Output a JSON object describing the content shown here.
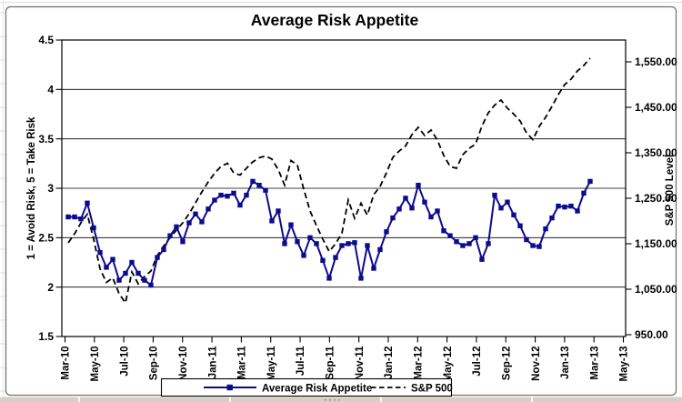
{
  "chart_data": {
    "type": "line",
    "title": "Average Risk Appetite",
    "grid": "horizontal",
    "plot_bg": "#ffffff",
    "frame_border_color": "#6f6f6f",
    "y_axis_left": {
      "label": "1 = Avoid Risk, 5 = Take Risk",
      "min": 1.5,
      "max": 4.5,
      "tick_labels": [
        "1.5",
        "2",
        "2.5",
        "3",
        "3.5",
        "4",
        "4.5"
      ]
    },
    "y_axis_right": {
      "label": "S&P 500 Level",
      "min": 950,
      "max": 1550,
      "tick_labels": [
        "950.00",
        "1,050.00",
        "1,150.00",
        "1,250.00",
        "1,350.00",
        "1,450.00",
        "1,550.00"
      ]
    },
    "x_axis": {
      "tick_labels": [
        "Mar-10",
        "May-10",
        "Jul-10",
        "Sep-10",
        "Nov-10",
        "Jan-11",
        "Mar-11",
        "May-11",
        "Jul-11",
        "Sep-11",
        "Nov-11",
        "Jan-12",
        "Mar-12",
        "May-12",
        "Jul-12",
        "Sep-12",
        "Nov-12",
        "Jan-13",
        "Mar-13",
        "May-13"
      ],
      "labels_rotated": true,
      "data_frequency": "biweekly",
      "data_start": "Mar-10",
      "data_end": "Mar-13"
    },
    "legend": {
      "position": "bottom"
    },
    "series": [
      {
        "name": "Average Risk Appetite",
        "axis": "left",
        "color": "#0b0b8f",
        "style": "solid",
        "marker": "square",
        "values": [
          2.71,
          2.71,
          2.69,
          2.85,
          2.6,
          2.35,
          2.2,
          2.28,
          2.07,
          2.14,
          2.25,
          2.14,
          2.07,
          2.02,
          2.3,
          2.38,
          2.52,
          2.61,
          2.46,
          2.65,
          2.74,
          2.66,
          2.79,
          2.88,
          2.93,
          2.92,
          2.95,
          2.83,
          2.93,
          3.07,
          3.03,
          2.98,
          2.67,
          2.77,
          2.44,
          2.63,
          2.46,
          2.32,
          2.5,
          2.44,
          2.27,
          2.09,
          2.3,
          2.42,
          2.44,
          2.45,
          2.09,
          2.42,
          2.19,
          2.38,
          2.56,
          2.7,
          2.79,
          2.9,
          2.8,
          3.03,
          2.86,
          2.71,
          2.77,
          2.57,
          2.52,
          2.46,
          2.42,
          2.44,
          2.5,
          2.28,
          2.44,
          2.93,
          2.8,
          2.86,
          2.73,
          2.62,
          2.48,
          2.42,
          2.41,
          2.59,
          2.7,
          2.82,
          2.81,
          2.82,
          2.77,
          2.95,
          3.07
        ]
      },
      {
        "name": "S&P 500",
        "axis": "right",
        "color": "#000000",
        "style": "dashed",
        "marker": "none",
        "values": [
          1152,
          1172,
          1196,
          1215,
          1160,
          1095,
          1065,
          1075,
          1040,
          1020,
          1088,
          1062,
          1078,
          1090,
          1124,
          1145,
          1163,
          1180,
          1196,
          1216,
          1240,
          1264,
          1286,
          1305,
          1320,
          1327,
          1306,
          1301,
          1316,
          1330,
          1339,
          1343,
          1336,
          1313,
          1279,
          1333,
          1323,
          1270,
          1222,
          1190,
          1160,
          1133,
          1150,
          1173,
          1246,
          1206,
          1239,
          1213,
          1258,
          1276,
          1306,
          1340,
          1354,
          1365,
          1390,
          1406,
          1388,
          1400,
          1378,
          1344,
          1320,
          1316,
          1346,
          1360,
          1369,
          1409,
          1438,
          1455,
          1466,
          1448,
          1435,
          1420,
          1394,
          1379,
          1408,
          1428,
          1452,
          1478,
          1500,
          1512,
          1530,
          1542,
          1558
        ]
      }
    ]
  },
  "worksheet": {
    "strip_color": "#d4d0c8",
    "gridline_color": "#e0e0e0"
  }
}
